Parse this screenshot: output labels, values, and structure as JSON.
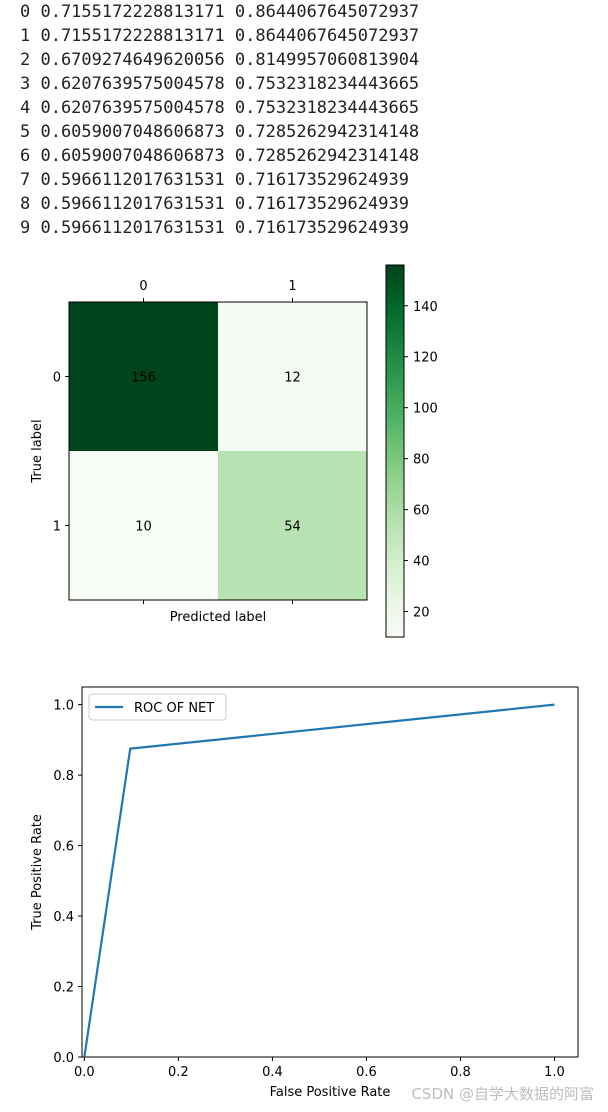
{
  "console": {
    "lines": [
      "0 0.7155172228813171 0.8644067645072937",
      "1 0.7155172228813171 0.8644067645072937",
      "2 0.6709274649620056 0.8149957060813904",
      "3 0.6207639575004578 0.7532318234443665",
      "4 0.6207639575004578 0.7532318234443665",
      "5 0.6059007048606873 0.7285262942314148",
      "6 0.6059007048606873 0.7285262942314148",
      "7 0.5966112017631531 0.716173529624939",
      "8 0.5966112017631531 0.716173529624939",
      "9 0.5966112017631531 0.716173529624939"
    ]
  },
  "chart_data": [
    {
      "type": "heatmap",
      "x_tick_labels": [
        "0",
        "1"
      ],
      "y_tick_labels": [
        "0",
        "1"
      ],
      "xlabel": "Predicted label",
      "ylabel": "True label",
      "values": [
        [
          156,
          12
        ],
        [
          10,
          54
        ]
      ],
      "colormap": "Greens",
      "colorbar": {
        "ticks": [
          20,
          40,
          60,
          80,
          100,
          120,
          140
        ],
        "range": [
          10,
          156
        ]
      },
      "colors": {
        "cell_max": "#00441b",
        "cell_54": "#b7e2b1",
        "cell_min": "#f7fcf5"
      }
    },
    {
      "type": "line",
      "series": [
        {
          "name": "ROC OF NET",
          "x": [
            0.0,
            0.0976,
            1.0
          ],
          "y": [
            0.0,
            0.875,
            1.0
          ],
          "color": "#1f77b4"
        }
      ],
      "xlabel": "False Positive Rate",
      "ylabel": "True Positive Rate",
      "xlim": [
        -0.005,
        1.05
      ],
      "ylim": [
        0.0,
        1.05
      ],
      "x_ticks": [
        "0.0",
        "0.2",
        "0.4",
        "0.6",
        "0.8",
        "1.0"
      ],
      "y_ticks": [
        "0.0",
        "0.2",
        "0.4",
        "0.6",
        "0.8",
        "1.0"
      ],
      "legend": "upper left"
    }
  ],
  "watermark": "CSDN @自学大数据的阿富"
}
